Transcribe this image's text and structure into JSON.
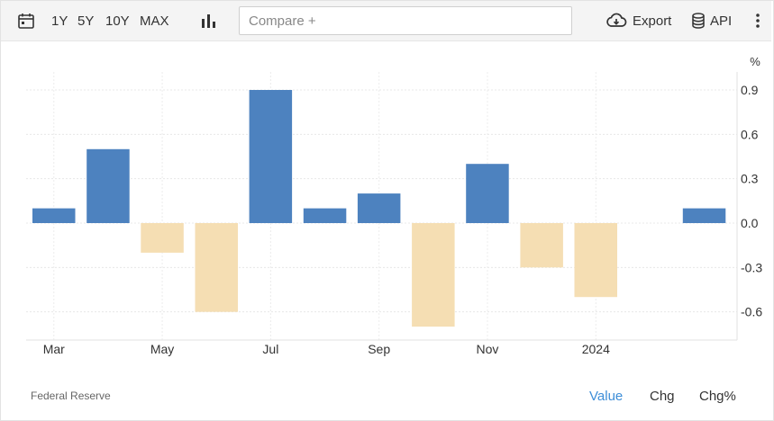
{
  "toolbar": {
    "ranges": [
      "1Y",
      "5Y",
      "10Y",
      "MAX"
    ],
    "compare_placeholder": "Compare +",
    "export_label": "Export",
    "api_label": "API"
  },
  "icons": {
    "calendar": "calendar-icon",
    "chart_type": "bar-chart-icon",
    "export": "cloud-download-icon",
    "api": "database-icon",
    "more": "more-vertical-icon"
  },
  "chart_data": {
    "type": "bar",
    "unit_label": "%",
    "x": [
      "2023-02",
      "2023-03",
      "2023-04",
      "2023-05",
      "2023-06",
      "2023-07",
      "2023-08",
      "2023-09",
      "2023-10",
      "2023-11",
      "2023-12",
      "2024-01",
      "2024-02"
    ],
    "values": [
      0.1,
      0.5,
      -0.2,
      -0.6,
      0.9,
      0.1,
      0.2,
      -0.7,
      0.4,
      -0.3,
      -0.5,
      0.0,
      0.1
    ],
    "x_tick_labels": [
      {
        "at": "2023-02",
        "label": "Mar"
      },
      {
        "at": "2023-04",
        "label": "May"
      },
      {
        "at": "2023-06",
        "label": "Jul"
      },
      {
        "at": "2023-08",
        "label": "Sep"
      },
      {
        "at": "2023-10",
        "label": "Nov"
      },
      {
        "at": "2023-12",
        "label": "2024"
      }
    ],
    "y_ticks": [
      "0.9",
      "0.6",
      "0.3",
      "0.0",
      "-0.3",
      "-0.6"
    ],
    "ylim": [
      -0.8,
      0.95
    ],
    "grid": true,
    "colors": {
      "positive": "#4d82bf",
      "negative": "#f5deb3"
    }
  },
  "footer": {
    "source": "Federal Reserve",
    "modes": [
      "Value",
      "Chg",
      "Chg%"
    ],
    "active_mode": "Value"
  }
}
